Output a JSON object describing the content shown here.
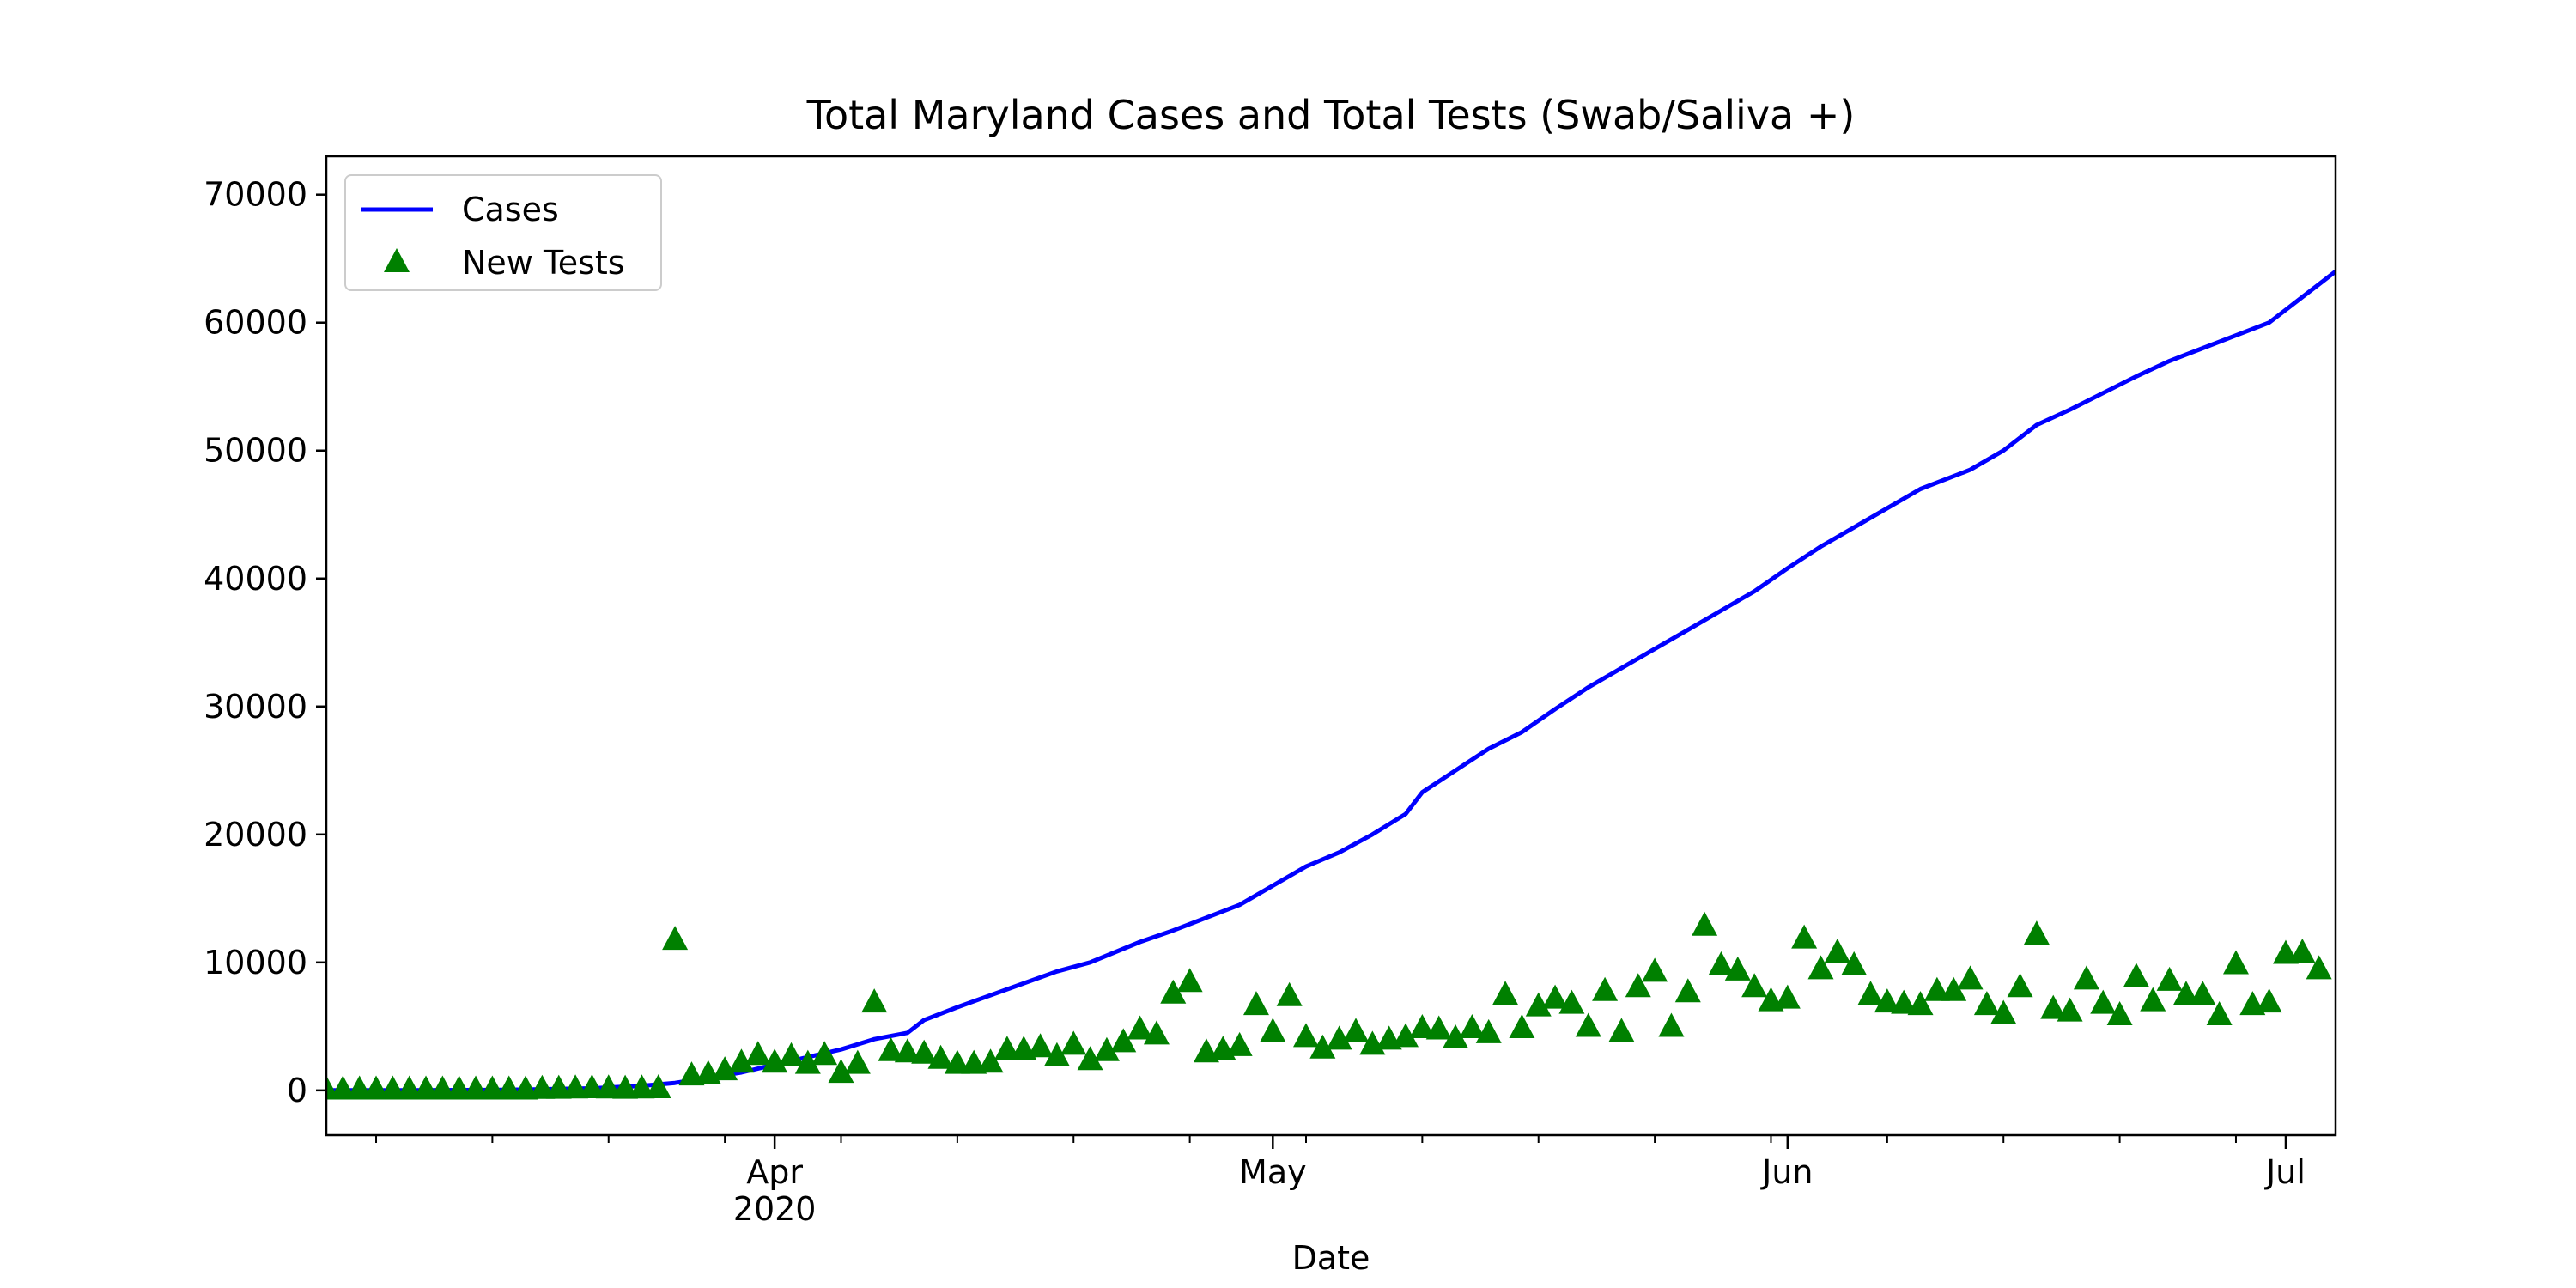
{
  "chart_data": {
    "type": "line+scatter",
    "title": "Total Maryland Cases and Total Tests (Swab/Saliva +)",
    "xlabel": "Date",
    "ylabel": "",
    "xlim": [
      "2020-03-05",
      "2020-07-04"
    ],
    "ylim": [
      -3500,
      73000
    ],
    "grid": false,
    "legend_position": "upper-left",
    "y_ticks": [
      0,
      10000,
      20000,
      30000,
      40000,
      50000,
      60000,
      70000
    ],
    "x_ticks": [
      {
        "date": "2020-04-01",
        "label": "Apr",
        "sublabel": "2020"
      },
      {
        "date": "2020-05-01",
        "label": "May",
        "sublabel": ""
      },
      {
        "date": "2020-06-01",
        "label": "Jun",
        "sublabel": ""
      },
      {
        "date": "2020-07-01",
        "label": "Jul",
        "sublabel": ""
      }
    ],
    "series": [
      {
        "name": "Cases",
        "kind": "line",
        "color": "#0000ff",
        "points": [
          [
            "2020-03-05",
            0
          ],
          [
            "2020-03-10",
            6
          ],
          [
            "2020-03-15",
            30
          ],
          [
            "2020-03-18",
            85
          ],
          [
            "2020-03-21",
            160
          ],
          [
            "2020-03-24",
            350
          ],
          [
            "2020-03-26",
            580
          ],
          [
            "2020-03-28",
            990
          ],
          [
            "2020-03-30",
            1400
          ],
          [
            "2020-04-01",
            2000
          ],
          [
            "2020-04-03",
            2600
          ],
          [
            "2020-04-05",
            3200
          ],
          [
            "2020-04-07",
            4000
          ],
          [
            "2020-04-09",
            4500
          ],
          [
            "2020-04-10",
            5500
          ],
          [
            "2020-04-12",
            6500
          ],
          [
            "2020-04-15",
            7900
          ],
          [
            "2020-04-18",
            9300
          ],
          [
            "2020-04-20",
            10000
          ],
          [
            "2020-04-23",
            11600
          ],
          [
            "2020-04-25",
            12500
          ],
          [
            "2020-04-27",
            13500
          ],
          [
            "2020-04-29",
            14500
          ],
          [
            "2020-05-01",
            16000
          ],
          [
            "2020-05-03",
            17500
          ],
          [
            "2020-05-05",
            18600
          ],
          [
            "2020-05-07",
            20000
          ],
          [
            "2020-05-09",
            21600
          ],
          [
            "2020-05-10",
            23300
          ],
          [
            "2020-05-12",
            25000
          ],
          [
            "2020-05-14",
            26700
          ],
          [
            "2020-05-16",
            28000
          ],
          [
            "2020-05-18",
            29800
          ],
          [
            "2020-05-20",
            31500
          ],
          [
            "2020-05-22",
            33000
          ],
          [
            "2020-05-24",
            34500
          ],
          [
            "2020-05-26",
            36000
          ],
          [
            "2020-05-28",
            37500
          ],
          [
            "2020-05-30",
            39000
          ],
          [
            "2020-06-01",
            40800
          ],
          [
            "2020-06-03",
            42500
          ],
          [
            "2020-06-05",
            44000
          ],
          [
            "2020-06-07",
            45500
          ],
          [
            "2020-06-09",
            47000
          ],
          [
            "2020-06-12",
            48500
          ],
          [
            "2020-06-14",
            50000
          ],
          [
            "2020-06-16",
            52000
          ],
          [
            "2020-06-18",
            53200
          ],
          [
            "2020-06-20",
            54500
          ],
          [
            "2020-06-22",
            55800
          ],
          [
            "2020-06-24",
            57000
          ],
          [
            "2020-06-26",
            58000
          ],
          [
            "2020-06-28",
            59000
          ],
          [
            "2020-06-30",
            60000
          ],
          [
            "2020-07-01",
            61000
          ],
          [
            "2020-07-02",
            62000
          ],
          [
            "2020-07-03",
            63000
          ],
          [
            "2020-07-04",
            64000
          ],
          [
            "2020-07-04",
            64000
          ]
        ]
      },
      {
        "name": "New Tests",
        "kind": "scatter",
        "marker": "triangle",
        "color": "#008000",
        "points": [
          [
            "2020-03-05",
            0
          ],
          [
            "2020-03-06",
            0
          ],
          [
            "2020-03-07",
            0
          ],
          [
            "2020-03-08",
            0
          ],
          [
            "2020-03-09",
            0
          ],
          [
            "2020-03-10",
            0
          ],
          [
            "2020-03-11",
            0
          ],
          [
            "2020-03-12",
            0
          ],
          [
            "2020-03-13",
            0
          ],
          [
            "2020-03-14",
            0
          ],
          [
            "2020-03-15",
            0
          ],
          [
            "2020-03-16",
            0
          ],
          [
            "2020-03-17",
            0
          ],
          [
            "2020-03-18",
            50
          ],
          [
            "2020-03-19",
            60
          ],
          [
            "2020-03-20",
            80
          ],
          [
            "2020-03-21",
            100
          ],
          [
            "2020-03-22",
            80
          ],
          [
            "2020-03-23",
            60
          ],
          [
            "2020-03-24",
            80
          ],
          [
            "2020-03-25",
            100
          ],
          [
            "2020-03-26",
            11700
          ],
          [
            "2020-03-27",
            1100
          ],
          [
            "2020-03-28",
            1200
          ],
          [
            "2020-03-29",
            1500
          ],
          [
            "2020-03-30",
            2100
          ],
          [
            "2020-03-31",
            2700
          ],
          [
            "2020-04-01",
            2100
          ],
          [
            "2020-04-02",
            2600
          ],
          [
            "2020-04-03",
            2000
          ],
          [
            "2020-04-04",
            2700
          ],
          [
            "2020-04-05",
            1300
          ],
          [
            "2020-04-06",
            2000
          ],
          [
            "2020-04-07",
            6800
          ],
          [
            "2020-04-08",
            3000
          ],
          [
            "2020-04-09",
            2900
          ],
          [
            "2020-04-10",
            2800
          ],
          [
            "2020-04-11",
            2400
          ],
          [
            "2020-04-12",
            2000
          ],
          [
            "2020-04-13",
            2000
          ],
          [
            "2020-04-14",
            2100
          ],
          [
            "2020-04-15",
            3100
          ],
          [
            "2020-04-16",
            3100
          ],
          [
            "2020-04-17",
            3300
          ],
          [
            "2020-04-18",
            2600
          ],
          [
            "2020-04-19",
            3500
          ],
          [
            "2020-04-20",
            2300
          ],
          [
            "2020-04-21",
            3000
          ],
          [
            "2020-04-22",
            3700
          ],
          [
            "2020-04-23",
            4700
          ],
          [
            "2020-04-24",
            4300
          ],
          [
            "2020-04-25",
            7500
          ],
          [
            "2020-04-26",
            8400
          ],
          [
            "2020-04-27",
            2900
          ],
          [
            "2020-04-28",
            3100
          ],
          [
            "2020-04-29",
            3400
          ],
          [
            "2020-04-30",
            6600
          ],
          [
            "2020-05-01",
            4500
          ],
          [
            "2020-05-02",
            7300
          ],
          [
            "2020-05-03",
            4100
          ],
          [
            "2020-05-04",
            3200
          ],
          [
            "2020-05-05",
            3900
          ],
          [
            "2020-05-06",
            4500
          ],
          [
            "2020-05-07",
            3500
          ],
          [
            "2020-05-08",
            3900
          ],
          [
            "2020-05-09",
            4100
          ],
          [
            "2020-05-10",
            4800
          ],
          [
            "2020-05-11",
            4700
          ],
          [
            "2020-05-12",
            4000
          ],
          [
            "2020-05-13",
            4800
          ],
          [
            "2020-05-14",
            4400
          ],
          [
            "2020-05-15",
            7400
          ],
          [
            "2020-05-16",
            4800
          ],
          [
            "2020-05-17",
            6500
          ],
          [
            "2020-05-18",
            7100
          ],
          [
            "2020-05-19",
            6700
          ],
          [
            "2020-05-20",
            4900
          ],
          [
            "2020-05-21",
            7700
          ],
          [
            "2020-05-22",
            4500
          ],
          [
            "2020-05-23",
            8000
          ],
          [
            "2020-05-24",
            9200
          ],
          [
            "2020-05-25",
            4900
          ],
          [
            "2020-05-26",
            7600
          ],
          [
            "2020-05-27",
            12800
          ],
          [
            "2020-05-28",
            9700
          ],
          [
            "2020-05-29",
            9300
          ],
          [
            "2020-05-30",
            8000
          ],
          [
            "2020-05-31",
            6900
          ],
          [
            "2020-06-01",
            7100
          ],
          [
            "2020-06-02",
            11800
          ],
          [
            "2020-06-03",
            9400
          ],
          [
            "2020-06-04",
            10700
          ],
          [
            "2020-06-05",
            9700
          ],
          [
            "2020-06-06",
            7400
          ],
          [
            "2020-06-07",
            6800
          ],
          [
            "2020-06-08",
            6700
          ],
          [
            "2020-06-09",
            6600
          ],
          [
            "2020-06-10",
            7700
          ],
          [
            "2020-06-11",
            7700
          ],
          [
            "2020-06-12",
            8600
          ],
          [
            "2020-06-13",
            6600
          ],
          [
            "2020-06-14",
            5900
          ],
          [
            "2020-06-15",
            8000
          ],
          [
            "2020-06-16",
            12100
          ],
          [
            "2020-06-17",
            6300
          ],
          [
            "2020-06-18",
            6100
          ],
          [
            "2020-06-19",
            8600
          ],
          [
            "2020-06-20",
            6700
          ],
          [
            "2020-06-21",
            5800
          ],
          [
            "2020-06-22",
            8800
          ],
          [
            "2020-06-23",
            6900
          ],
          [
            "2020-06-24",
            8500
          ],
          [
            "2020-06-25",
            7400
          ],
          [
            "2020-06-26",
            7400
          ],
          [
            "2020-06-27",
            5800
          ],
          [
            "2020-06-28",
            9800
          ],
          [
            "2020-06-29",
            6600
          ],
          [
            "2020-06-30",
            6800
          ],
          [
            "2020-07-01",
            10600
          ],
          [
            "2020-07-02",
            10700
          ],
          [
            "2020-07-03",
            9400
          ]
        ]
      }
    ]
  }
}
